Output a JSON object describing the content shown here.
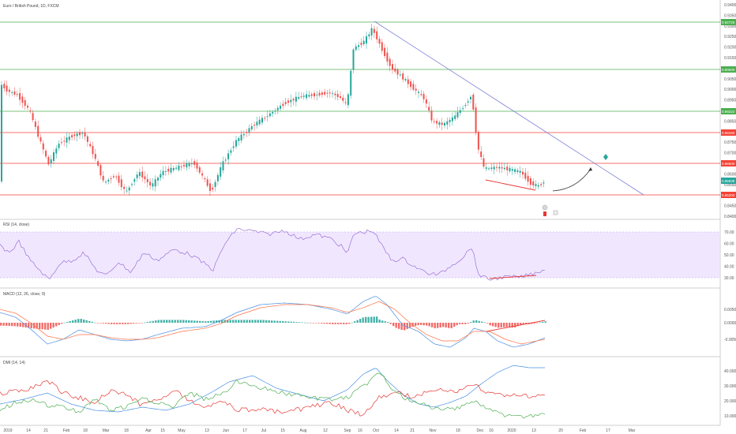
{
  "header": {
    "symbol_title": "Euro / British Pound, 1D, FXCM"
  },
  "colors": {
    "up": "#26a69a",
    "down": "#ef5350",
    "green_level": "#4caf50",
    "red_level": "#f44336",
    "trendline": "#7b7fd6",
    "rsi_band": "#e9ddff",
    "rsi_line": "#9c6fd6",
    "macd_line": "#4a90e2",
    "signal_line": "#ff7043",
    "dmi_plus": "#4caf50",
    "dmi_minus": "#e53935",
    "adx": "#4a90e2"
  },
  "price_axis": {
    "labels": [
      "0.94000",
      "0.93500",
      "0.93000",
      "0.92500",
      "0.92000",
      "0.91500",
      "0.91000",
      "0.90500",
      "0.90000",
      "0.89500",
      "0.89000",
      "0.88500",
      "0.88000",
      "0.87500",
      "0.87000",
      "0.86500",
      "0.86000",
      "0.85500",
      "0.85000",
      "0.84500",
      "0.84000"
    ],
    "green_levels": [
      {
        "label": "0.92725"
      },
      {
        "label": "0.90000"
      },
      {
        "label": "0.89222"
      }
    ],
    "red_levels": [
      {
        "label": "0.88160"
      },
      {
        "label": "0.86500"
      },
      {
        "label": "0.85200"
      }
    ],
    "current_price": "0.85838"
  },
  "time_axis": {
    "labels": [
      "2019",
      "14",
      "21",
      "Feb",
      "18",
      "Mar",
      "18",
      "Apr",
      "15",
      "May",
      "13",
      "Jun",
      "17",
      "Jul",
      "15",
      "Aug",
      "12",
      "Sep",
      "16",
      "Oct",
      "14",
      "21",
      "Nov",
      "18",
      "Dec",
      "16",
      "2020",
      "13",
      "20",
      "Feb",
      "17",
      "Mar"
    ]
  },
  "rsi": {
    "title": "RSI (14, close)",
    "labels": [
      "70.00",
      "60.00",
      "50.00",
      "40.00",
      "30.00"
    ]
  },
  "macd": {
    "title": "MACD (12, 26, close, 9)",
    "labels": [
      "0.00500",
      "0.00000",
      "-0.00500"
    ]
  },
  "dmi": {
    "title": "DMI (14, 14)",
    "labels": [
      "40.0000",
      "30.0000",
      "20.0000",
      "10.0000"
    ]
  }
}
